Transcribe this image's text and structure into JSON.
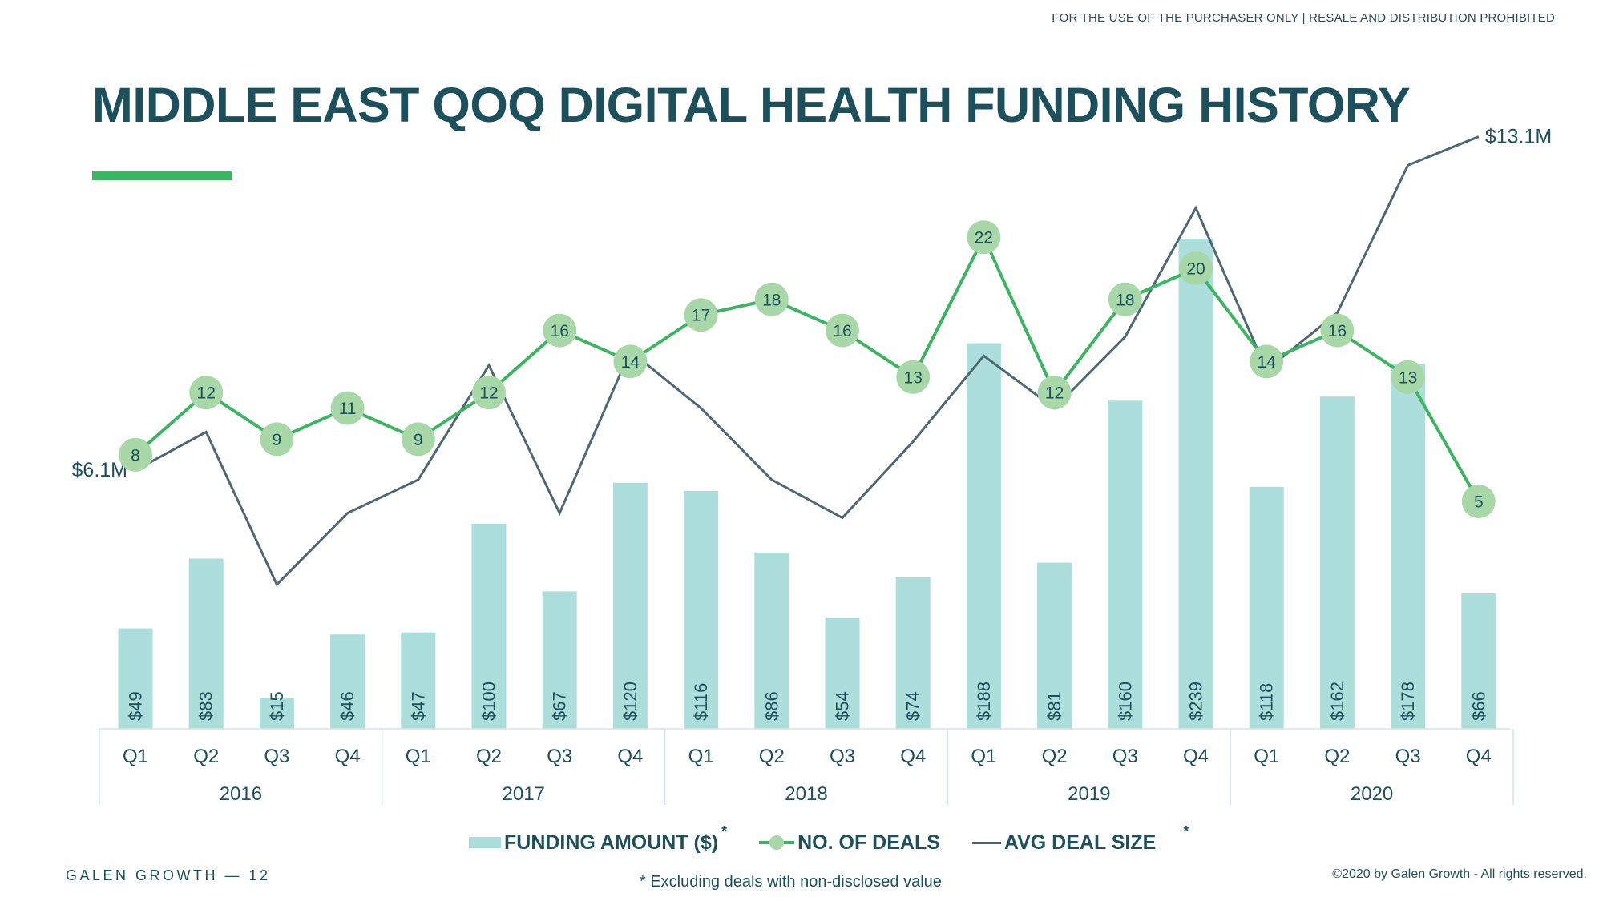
{
  "header": {
    "disclaimer": "FOR THE USE OF THE PURCHASER ONLY | RESALE AND DISTRIBUTION PROHIBITED",
    "title": "MIDDLE EAST QOQ DIGITAL HEALTH FUNDING HISTORY"
  },
  "footer": {
    "brand": "GALEN GROWTH — 12",
    "footnote": "* Excluding deals with non-disclosed value",
    "copyright": "©2020 by Galen Growth - All rights reserved."
  },
  "legend": {
    "funding": "FUNDING AMOUNT ($)",
    "deals": "NO. OF DEALS",
    "avg": "AVG DEAL SIZE",
    "asterisk": "*"
  },
  "colors": {
    "bar": "#acdedb",
    "deals_line": "#3cb562",
    "deals_marker": "#a8d8a8",
    "avg_line": "#4e6873",
    "title": "#1d505d",
    "accent": "#3cb562"
  },
  "chart_data": {
    "type": "bar",
    "categories": [
      "Q1",
      "Q2",
      "Q3",
      "Q4",
      "Q1",
      "Q2",
      "Q3",
      "Q4",
      "Q1",
      "Q2",
      "Q3",
      "Q4",
      "Q1",
      "Q2",
      "Q3",
      "Q4",
      "Q1",
      "Q2",
      "Q3",
      "Q4"
    ],
    "groups": [
      "2016",
      "2017",
      "2018",
      "2019",
      "2020"
    ],
    "series": [
      {
        "name": "FUNDING AMOUNT ($)",
        "type": "bar",
        "values": [
          49,
          83,
          15,
          46,
          47,
          100,
          67,
          120,
          116,
          86,
          54,
          74,
          188,
          81,
          160,
          239,
          118,
          162,
          178,
          66
        ],
        "labels": [
          "$49",
          "$83",
          "$15",
          "$46",
          "$47",
          "$100",
          "$67",
          "$120",
          "$116",
          "$86",
          "$54",
          "$74",
          "$188",
          "$81",
          "$160",
          "$239",
          "$118",
          "$162",
          "$178",
          "$66"
        ]
      },
      {
        "name": "NO. OF DEALS",
        "type": "line",
        "values": [
          8,
          12,
          9,
          11,
          9,
          12,
          16,
          14,
          17,
          18,
          16,
          13,
          22,
          12,
          18,
          20,
          14,
          16,
          13,
          5
        ]
      },
      {
        "name": "AVG DEAL SIZE",
        "type": "line",
        "values": [
          6.1,
          6.9,
          3.7,
          5.2,
          5.9,
          8.3,
          5.2,
          8.6,
          7.4,
          5.9,
          5.1,
          6.7,
          8.5,
          7.4,
          8.9,
          11.6,
          8.2,
          9.4,
          12.5,
          13.1
        ],
        "labels": [
          "$6.1M",
          "",
          "",
          "",
          "",
          "",
          "",
          "",
          "",
          "",
          "",
          "",
          "",
          "",
          "",
          "",
          "",
          "",
          "",
          "$13.1M"
        ]
      }
    ]
  }
}
